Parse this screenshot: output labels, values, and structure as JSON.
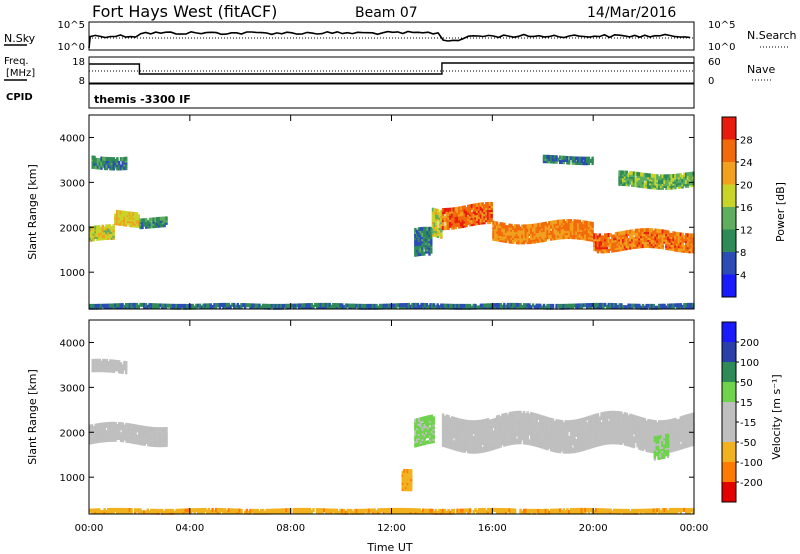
{
  "header": {
    "station": "Fort Hays West (fitACF)",
    "beam": "Beam 07",
    "date": "14/Mar/2016"
  },
  "noise_panel": {
    "left_label": "N.Sky",
    "left_ticks": [
      "10^5",
      "10^0"
    ],
    "right_ticks": [
      "10^5",
      "10^0"
    ],
    "right_label": "N.Search"
  },
  "freq_panel": {
    "left_label_lines": [
      "Freq.",
      "[MHz]"
    ],
    "left_ticks": [
      "18",
      "8"
    ],
    "right_ticks": [
      "60",
      "0"
    ],
    "right_label": "Nave",
    "cpid_label": "CPID",
    "cpid_value": "themis -3300 IF"
  },
  "chart_data": [
    {
      "type": "heatmap",
      "title": "Power",
      "xlabel": "Time UT",
      "ylabel": "Slant Range [km]",
      "x_ticks": [
        "00:00",
        "04:00",
        "08:00",
        "12:00",
        "16:00",
        "20:00",
        "00:00"
      ],
      "xlim_hours": [
        0,
        24
      ],
      "y_ticks": [
        "1000",
        "2000",
        "3000",
        "4000"
      ],
      "ylim": [
        180,
        4500
      ],
      "colorbar": {
        "label": "Power [dB]",
        "ticks": [
          "28",
          "24",
          "20",
          "16",
          "12",
          "8",
          "4"
        ],
        "range": [
          0,
          32
        ]
      },
      "echo_bands": [
        {
          "t": [
            0.0,
            1.0
          ],
          "center": 1850,
          "width": 300,
          "value": 18
        },
        {
          "t": [
            1.0,
            2.0
          ],
          "center": 2200,
          "width": 300,
          "value": 20
        },
        {
          "t": [
            2.0,
            3.1
          ],
          "center": 2100,
          "width": 200,
          "value": 10
        },
        {
          "t": [
            0.1,
            1.5
          ],
          "center": 3450,
          "width": 250,
          "value": 10
        },
        {
          "t": [
            12.9,
            13.6
          ],
          "center": 1600,
          "width": 600,
          "value": 9
        },
        {
          "t": [
            13.6,
            14.0
          ],
          "center": 2100,
          "width": 600,
          "value": 18
        },
        {
          "t": [
            14.0,
            16.0
          ],
          "center": 2250,
          "width": 450,
          "value": 26
        },
        {
          "t": [
            16.0,
            20.0
          ],
          "center": 1900,
          "width": 400,
          "value": 24
        },
        {
          "t": [
            20.0,
            24.0
          ],
          "center": 1700,
          "width": 400,
          "value": 25
        },
        {
          "t": [
            18.0,
            20.0
          ],
          "center": 3500,
          "width": 150,
          "value": 9
        },
        {
          "t": [
            21.0,
            24.0
          ],
          "center": 3050,
          "width": 300,
          "value": 14
        },
        {
          "t": [
            0.0,
            24.0
          ],
          "center": 240,
          "width": 80,
          "value": 8
        }
      ]
    },
    {
      "type": "heatmap",
      "title": "Velocity",
      "xlabel": "Time UT",
      "ylabel": "Slant Range [km]",
      "x_ticks": [
        "00:00",
        "04:00",
        "08:00",
        "12:00",
        "16:00",
        "20:00",
        "00:00"
      ],
      "xlim_hours": [
        0,
        24
      ],
      "y_ticks": [
        "1000",
        "2000",
        "3000",
        "4000"
      ],
      "ylim": [
        180,
        4500
      ],
      "colorbar": {
        "label": "Velocity [m s⁻¹]",
        "ticks": [
          "200",
          "100",
          "50",
          "15",
          "-15",
          "-50",
          "-100",
          "-200"
        ],
        "range": [
          -250,
          250
        ]
      },
      "echo_bands": [
        {
          "t": [
            0.0,
            3.1
          ],
          "center": 1950,
          "width": 400,
          "value": 0
        },
        {
          "t": [
            0.1,
            1.5
          ],
          "center": 3450,
          "width": 250,
          "value": 0
        },
        {
          "t": [
            12.4,
            12.8
          ],
          "center": 1000,
          "width": 450,
          "value": -60
        },
        {
          "t": [
            12.9,
            13.7
          ],
          "center": 2000,
          "width": 600,
          "value": 40
        },
        {
          "t": [
            14.0,
            24.0
          ],
          "center": 2000,
          "width": 700,
          "value": 0
        },
        {
          "t": [
            22.4,
            23.0
          ],
          "center": 1700,
          "width": 500,
          "value": 40
        },
        {
          "t": [
            0.0,
            24.0
          ],
          "center": 240,
          "width": 80,
          "value": -60
        }
      ]
    }
  ]
}
